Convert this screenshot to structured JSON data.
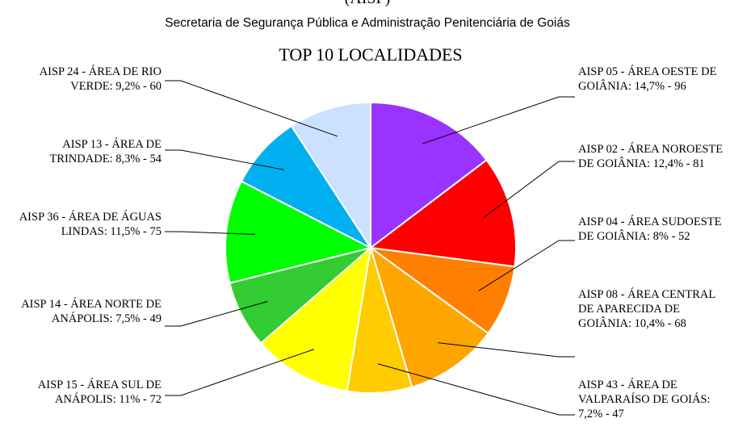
{
  "chart_data": {
    "type": "pie",
    "heading": "(AISP)",
    "subtitle": "Secretaria de Segurança Pública e Administração Penitenciária de Goiás",
    "title": "TOP 10 LOCALIDADES",
    "categories": [
      "AISP 05 - ÁREA OESTE DE GOIÂNIA",
      "AISP 02 - ÁREA NOROESTE DE GOIÂNIA",
      "AISP 04 - ÁREA SUDOESTE DE GOIÂNIA",
      "AISP 08 - ÁREA CENTRAL DE APARECIDA DE GOIÂNIA",
      "AISP 43 - ÁREA DE VALPARAÍSO DE GOIÁS",
      "AISP 15 - ÁREA SUL DE ANÁPOLIS",
      "AISP 14 - ÁREA NORTE DE ANÁPOLIS",
      "AISP 36 - ÁREA DE ÁGUAS LINDAS",
      "AISP 13 - ÁREA DE TRINDADE",
      "AISP 24 - ÁREA DE RIO VERDE"
    ],
    "values": [
      96,
      81,
      52,
      68,
      47,
      72,
      49,
      75,
      54,
      60
    ],
    "value_labels": [
      "AISP 05 - ÁREA OESTE DE GOIÂNIA: 14,7% - 96",
      "AISP 02 - ÁREA NOROESTE DE GOIÂNIA: 12,4% - 81",
      "AISP 04 - ÁREA SUDOESTE DE GOIÂNIA: 8% - 52",
      "AISP 08 - ÁREA CENTRAL DE APARECIDA DE GOIÂNIA: 10,4% - 68",
      "AISP 43 - ÁREA DE VALPARAÍSO DE GOIÁS: 7,2% - 47",
      "AISP 15 - ÁREA SUL DE ANÁPOLIS: 11% - 72",
      "AISP 14 - ÁREA NORTE DE ANÁPOLIS: 7,5% - 49",
      "AISP 36 - ÁREA DE ÁGUAS LINDAS: 11,5% - 75",
      "AISP 13 - ÁREA DE TRINDADE: 8,3% - 54",
      "AISP 24 - ÁREA DE RIO VERDE: 9,2% - 60"
    ],
    "colors": [
      "#9933ff",
      "#ff0000",
      "#ff8000",
      "#ffa500",
      "#ffcc00",
      "#ffff00",
      "#33cc33",
      "#00ff00",
      "#00b0f0",
      "#cce0ff"
    ]
  }
}
